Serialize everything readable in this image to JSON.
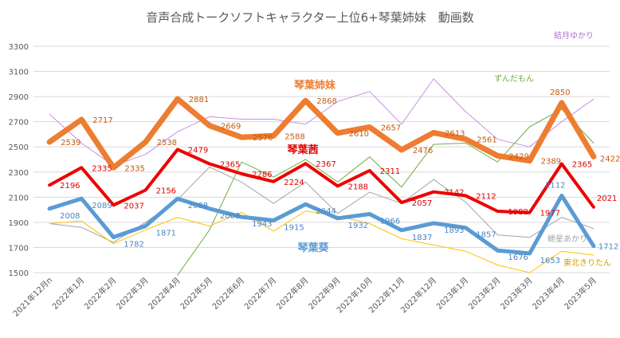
{
  "chart_data": {
    "type": "line",
    "title": "音声合成トークソフトキャラクター上位6+琴葉姉妹　動画数",
    "xlabel": "",
    "ylabel": "",
    "ylim": [
      1500,
      3300
    ],
    "yticks": [
      1500,
      1700,
      1900,
      2100,
      2300,
      2500,
      2700,
      2900,
      3100,
      3300
    ],
    "grid": true,
    "legend": "inline",
    "categories": [
      "2021年12月n",
      "2022年1月",
      "2022年2月",
      "2022年3月",
      "2022年4月",
      "2022年5月",
      "2022年6月",
      "2022年7月",
      "2022年8月",
      "2022年9月",
      "2022年10月",
      "2022年11月",
      "2022年12月",
      "2023年1月",
      "2023年2月",
      "2023年3月",
      "2023年4月",
      "2023年5月"
    ],
    "series": [
      {
        "name": "結月ゆかり",
        "color": "#c990e0",
        "width": 1,
        "labeled": false,
        "values": [
          2760,
          2530,
          2350,
          2440,
          2620,
          2740,
          2720,
          2720,
          2680,
          2860,
          2940,
          2680,
          3040,
          2780,
          2560,
          2500,
          2700,
          2880
        ]
      },
      {
        "name": "ずんだもん",
        "color": "#70ad47",
        "width": 1,
        "labeled": false,
        "values": [
          null,
          null,
          null,
          null,
          1480,
          1840,
          2380,
          2260,
          2400,
          2220,
          2420,
          2180,
          2520,
          2530,
          2380,
          2660,
          2800,
          2530
        ]
      },
      {
        "name": "琴葉姉妹",
        "color": "#ed7d31",
        "width": 7,
        "labeled": true,
        "values": [
          2539,
          2717,
          2335,
          2538,
          2881,
          2669,
          2576,
          2588,
          2868,
          2610,
          2657,
          2476,
          2613,
          2561,
          2429,
          2389,
          2850,
          2422
        ]
      },
      {
        "name": "琴葉茜",
        "color": "#ee0000",
        "width": 4,
        "labeled": true,
        "values": [
          2196,
          2335,
          2037,
          2156,
          2479,
          2365,
          2286,
          2224,
          2367,
          2188,
          2311,
          2057,
          2142,
          2112,
          1988,
          1977,
          2365,
          2021
        ]
      },
      {
        "name": "琴葉葵",
        "color": "#5b9bd5",
        "width": 5,
        "labeled": true,
        "values": [
          2008,
          2089,
          1782,
          1871,
          2088,
          2008,
          1943,
          1915,
          2044,
          1932,
          1966,
          1837,
          1893,
          1857,
          1676,
          1653,
          2112,
          1712
        ]
      },
      {
        "name": "紲星あかり",
        "color": "#a5a5a5",
        "width": 1,
        "labeled": false,
        "values": [
          1890,
          1860,
          1740,
          1900,
          2080,
          2340,
          2220,
          2050,
          2220,
          1970,
          2140,
          2050,
          2240,
          2060,
          1800,
          1780,
          1940,
          1850
        ]
      },
      {
        "name": "東北きりたん",
        "color": "#ffc000",
        "width": 1,
        "labeled": false,
        "values": [
          1890,
          1910,
          1730,
          1840,
          1940,
          1870,
          1980,
          1830,
          1990,
          1950,
          1890,
          1770,
          1720,
          1670,
          1560,
          1500,
          1670,
          1640
        ]
      }
    ],
    "x_tick_labels": [
      "2021年12月n",
      "2022年1月",
      "2022年2月",
      "2022年3月",
      "2022年4月",
      "2022年5月",
      "2022年6月",
      "2022年7月",
      "2022年8月",
      "2022年9月",
      "2022年10月",
      "2022年11月",
      "2022年12月",
      "2023年1月",
      "2023年2月",
      "2023年3月",
      "2023年4月",
      "2023年5月"
    ]
  }
}
